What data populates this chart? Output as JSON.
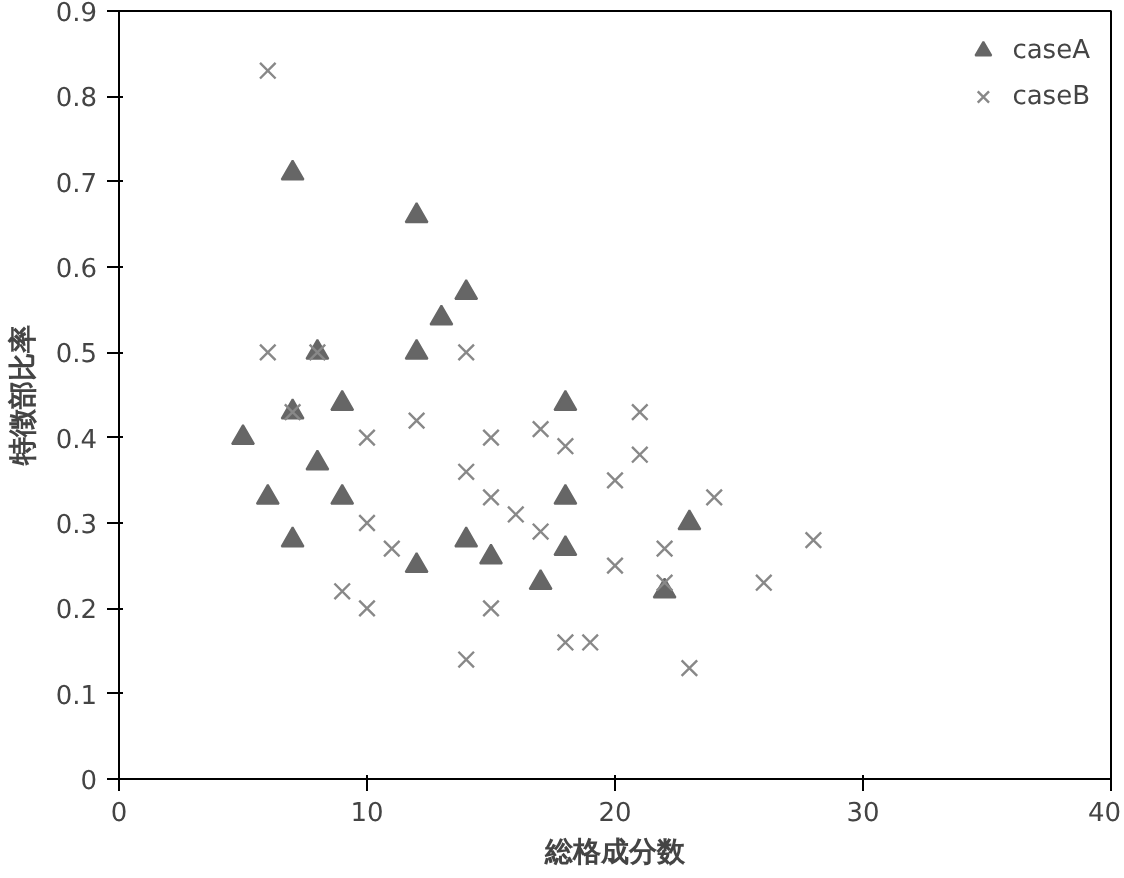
{
  "chart_data": {
    "type": "scatter",
    "xlabel": "総格成分数",
    "ylabel": "特徴部比率",
    "xlim": [
      0,
      40
    ],
    "ylim": [
      0,
      0.9
    ],
    "xticks": [
      0,
      10,
      20,
      30,
      40
    ],
    "yticks": [
      0,
      0.1,
      0.2,
      0.3,
      0.4,
      0.5,
      0.6,
      0.7,
      0.8,
      0.9
    ],
    "grid": false,
    "legend": "top right",
    "series": [
      {
        "name": "caseA",
        "color": "#666666",
        "marker": "triangle",
        "x": [
          5,
          6,
          7,
          7,
          7,
          8,
          8,
          9,
          9,
          12,
          12,
          12,
          13,
          14,
          14,
          15,
          17,
          18,
          18,
          18,
          22,
          23
        ],
        "values": [
          0.4,
          0.33,
          0.71,
          0.43,
          0.28,
          0.5,
          0.37,
          0.44,
          0.33,
          0.66,
          0.5,
          0.25,
          0.54,
          0.57,
          0.28,
          0.26,
          0.23,
          0.44,
          0.33,
          0.27,
          0.22,
          0.3
        ]
      },
      {
        "name": "caseB",
        "color": "#888888",
        "marker": "cross",
        "x": [
          6,
          6,
          7,
          8,
          9,
          10,
          10,
          10,
          11,
          12,
          14,
          14,
          14,
          15,
          15,
          15,
          16,
          17,
          17,
          18,
          18,
          19,
          20,
          20,
          21,
          21,
          22,
          22,
          23,
          24,
          26,
          28
        ],
        "values": [
          0.83,
          0.5,
          0.43,
          0.5,
          0.22,
          0.4,
          0.2,
          0.3,
          0.27,
          0.42,
          0.5,
          0.36,
          0.14,
          0.4,
          0.33,
          0.2,
          0.31,
          0.41,
          0.29,
          0.39,
          0.16,
          0.16,
          0.25,
          0.35,
          0.43,
          0.38,
          0.27,
          0.23,
          0.13,
          0.33,
          0.23,
          0.28
        ]
      }
    ]
  }
}
